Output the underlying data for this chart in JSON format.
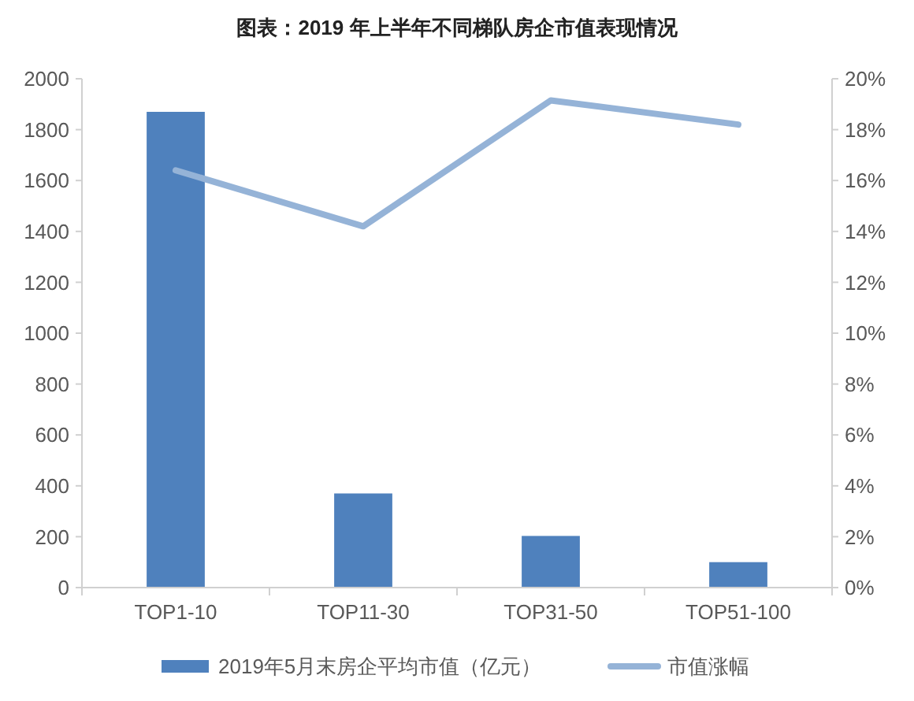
{
  "chart_data": {
    "type": "bar",
    "title": "图表：2019 年上半年不同梯队房企市值表现情况",
    "categories": [
      "TOP1-10",
      "TOP11-30",
      "TOP31-50",
      "TOP51-100"
    ],
    "series": [
      {
        "name": "2019年5月末房企平均市值（亿元）",
        "color": "#4f81bd",
        "values": [
          1870,
          370,
          203,
          100
        ]
      },
      {
        "name": "市值涨幅",
        "type": "line",
        "axis": "y2",
        "color": "#95b3d7",
        "values": [
          16.4,
          14.2,
          19.15,
          18.2
        ]
      }
    ],
    "ylim": [
      0,
      2000
    ],
    "yticks": [
      0,
      200,
      400,
      600,
      800,
      1000,
      1200,
      1400,
      1600,
      1800,
      2000
    ],
    "y2lim": [
      0,
      20
    ],
    "y2ticks": [
      {
        "value": 0,
        "label": "0%"
      },
      {
        "value": 2,
        "label": "2%"
      },
      {
        "value": 4,
        "label": "4%"
      },
      {
        "value": 6,
        "label": "6%"
      },
      {
        "value": 8,
        "label": "8%"
      },
      {
        "value": 10,
        "label": "10%"
      },
      {
        "value": 12,
        "label": "12%"
      },
      {
        "value": 14,
        "label": "14%"
      },
      {
        "value": 16,
        "label": "16%"
      },
      {
        "value": 18,
        "label": "18%"
      },
      {
        "value": 20,
        "label": "20%"
      }
    ],
    "legend": "bottom",
    "grid": false,
    "marker": "none"
  }
}
